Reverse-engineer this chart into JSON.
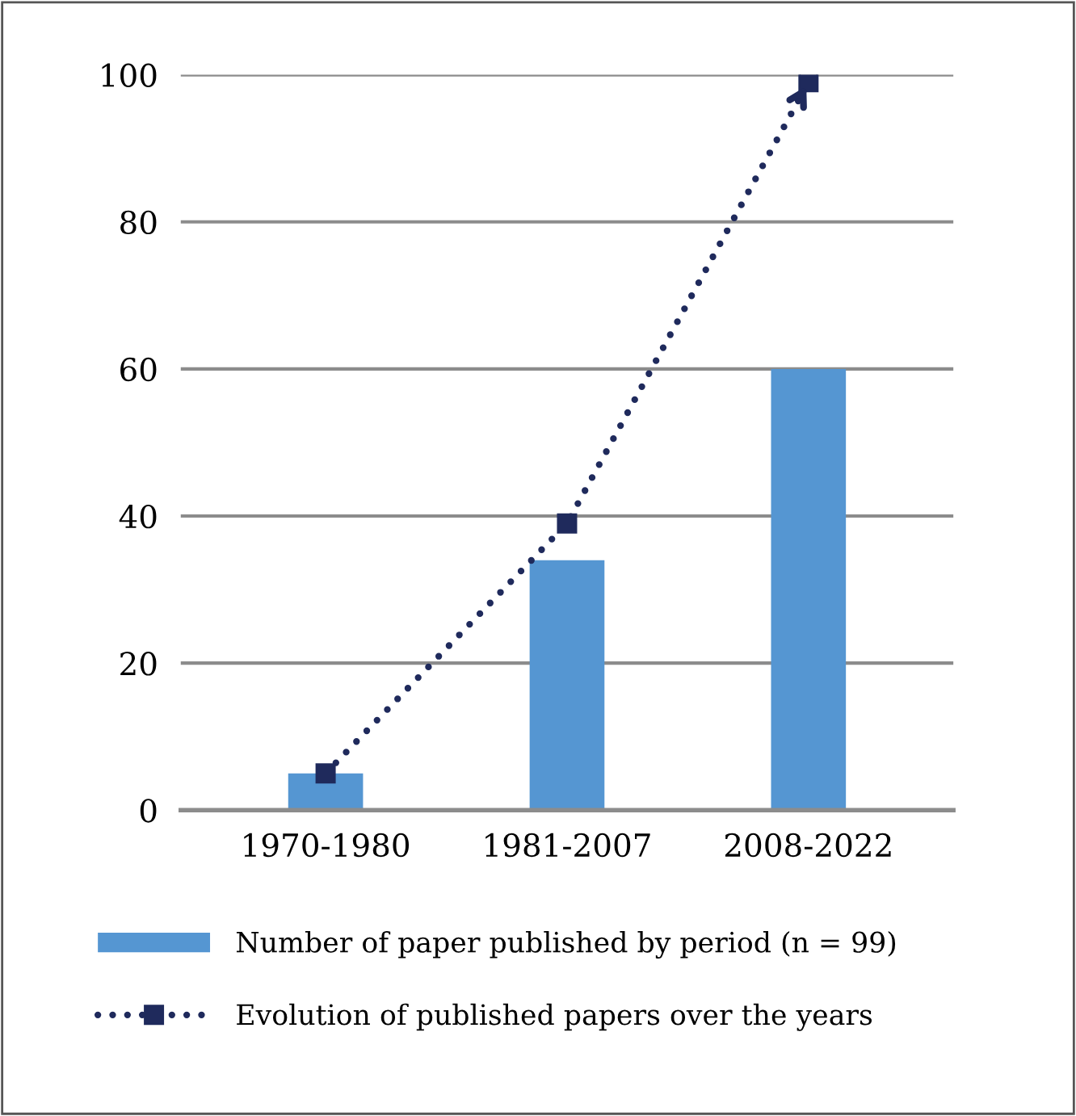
{
  "chart_data": {
    "type": "bar",
    "categories": [
      "1970-1980",
      "1981-2007",
      "2008-2022"
    ],
    "series": [
      {
        "name": "Number of paper published by period (n = 99)",
        "color": "#5596d2",
        "values": [
          5,
          34,
          60
        ]
      },
      {
        "name": "Evolution of published papers over the years",
        "type": "line",
        "color": "#1f2a5c",
        "values": [
          5,
          39,
          99
        ],
        "marker": "square",
        "line_style": "dotted"
      }
    ],
    "ylim": [
      0,
      100
    ],
    "yticks": [
      0,
      20,
      40,
      60,
      80,
      100
    ],
    "grid": "y",
    "legend": "bottom"
  }
}
